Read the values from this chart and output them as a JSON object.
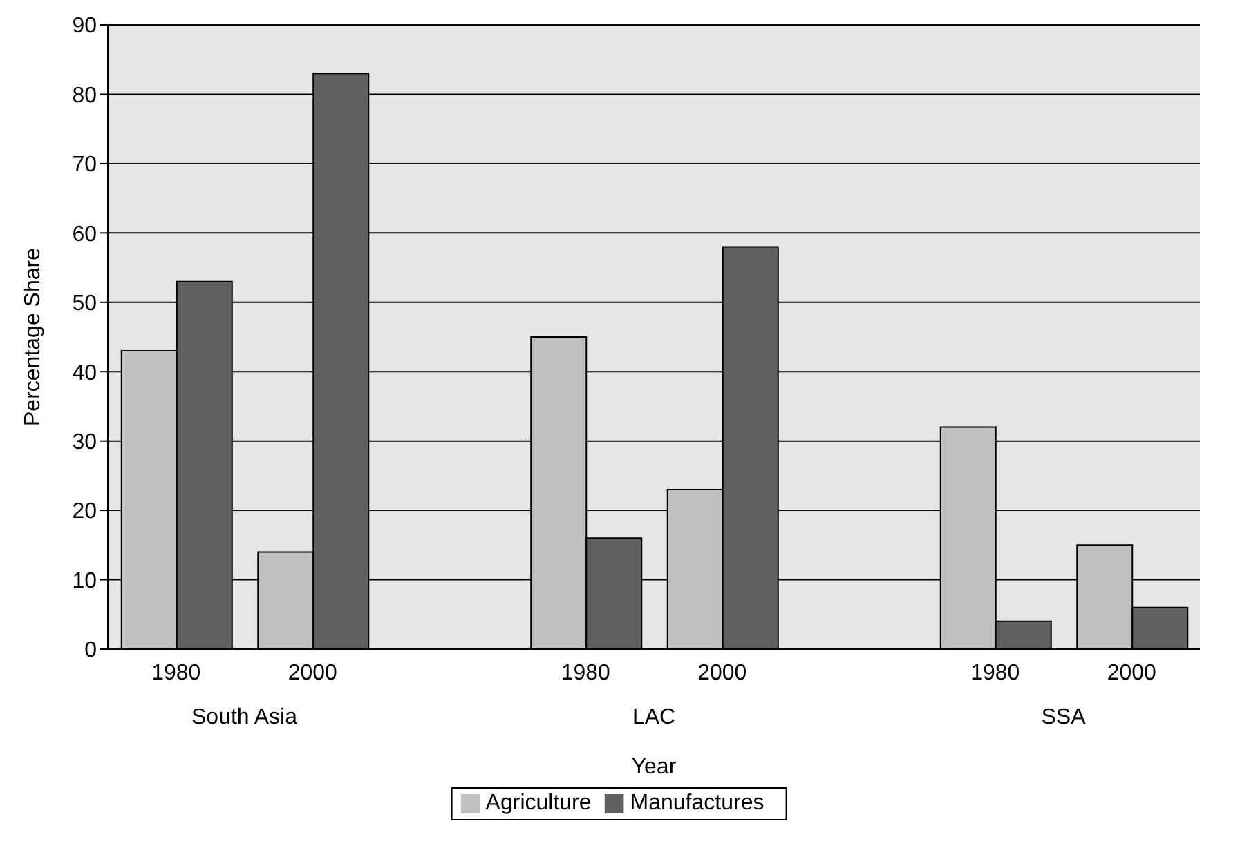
{
  "chart_data": {
    "type": "bar",
    "xlabel": "Year",
    "ylabel": "Percentage Share",
    "categories": [
      "1980",
      "2000",
      null,
      "1980",
      "2000",
      null,
      "1980",
      "2000"
    ],
    "annotations": [
      "South Asia",
      "LAC",
      "SSA"
    ],
    "series": [
      {
        "name": "Agriculture",
        "color": "#c0c0c0",
        "values": [
          43,
          14,
          null,
          45,
          23,
          null,
          32,
          15
        ]
      },
      {
        "name": "Manufactures",
        "color": "#606060",
        "values": [
          53,
          83,
          null,
          16,
          58,
          null,
          4,
          6
        ]
      }
    ],
    "ylim": [
      0,
      90
    ],
    "yticks": [
      0,
      10,
      20,
      30,
      40,
      50,
      60,
      70,
      80,
      90
    ],
    "grid": "y",
    "legend": "bottom"
  }
}
